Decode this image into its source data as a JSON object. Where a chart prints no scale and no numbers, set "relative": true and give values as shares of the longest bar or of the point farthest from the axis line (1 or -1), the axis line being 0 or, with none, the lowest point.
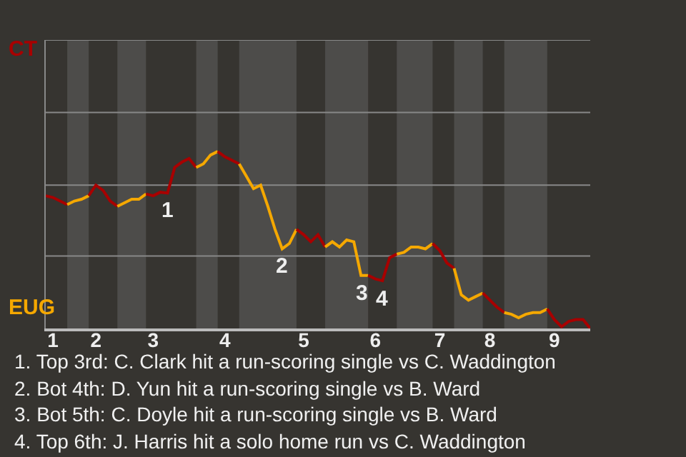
{
  "chart_data": {
    "type": "line",
    "relative": true,
    "categories": [
      null,
      "1",
      null,
      null,
      null,
      null,
      null,
      "2",
      null,
      null,
      null,
      null,
      null,
      null,
      null,
      "3",
      null,
      null,
      null,
      null,
      null,
      null,
      null,
      null,
      null,
      "4",
      null,
      null,
      null,
      null,
      null,
      null,
      null,
      null,
      null,
      null,
      "5",
      null,
      null,
      null,
      null,
      null,
      null,
      null,
      null,
      null,
      "6",
      null,
      null,
      null,
      null,
      null,
      null,
      null,
      null,
      "7",
      null,
      null,
      null,
      null,
      null,
      null,
      "8",
      null,
      null,
      null,
      null,
      null,
      null,
      null,
      null,
      "9",
      null,
      null,
      null,
      null,
      null
    ],
    "marker": "none",
    "line_style": "solid",
    "ref_lines": [
      {
        "axis": "y",
        "value": 0.41,
        "color": "#888888"
      },
      {
        "axis": "y",
        "value": 0.81,
        "color": "#888888"
      },
      {
        "axis": "y",
        "value": 1.22,
        "color": "#888888"
      },
      {
        "axis": "y",
        "value": 1.63,
        "color": "#888888"
      }
    ],
    "series": [
      {
        "name": "CT",
        "color": "#a80000",
        "values": [
          0.75,
          0.74,
          0.72,
          0.7,
          null,
          null,
          null,
          null,
          null,
          null,
          null,
          null,
          null,
          null,
          null,
          null,
          null,
          null,
          null,
          null,
          null,
          null,
          null,
          null,
          null,
          null,
          null,
          null,
          null,
          null,
          null,
          null,
          null,
          null,
          null,
          null,
          null,
          null,
          null,
          null,
          null,
          null,
          null,
          null,
          null,
          null,
          null,
          null,
          null,
          null,
          null,
          null,
          null,
          null,
          null,
          null,
          null,
          null,
          null,
          null,
          null,
          null,
          null,
          null,
          null,
          null,
          null,
          null,
          null,
          null,
          null,
          null,
          null,
          null,
          null,
          null,
          null
        ]
      },
      {
        "name": "EUG",
        "color": "#f5a800",
        "values": [
          null,
          null,
          null,
          0.7,
          0.72,
          0.73,
          0.75,
          null,
          null,
          null,
          null,
          null,
          null,
          null,
          null,
          null,
          null,
          null,
          null,
          null,
          null,
          null,
          null,
          null,
          null,
          null,
          null,
          null,
          null,
          null,
          null,
          null,
          null,
          null,
          null,
          null,
          null,
          null,
          null,
          null,
          null,
          null,
          null,
          null,
          null,
          null,
          null,
          null,
          null,
          null,
          null,
          null,
          null,
          null,
          null,
          null,
          null,
          null,
          null,
          null,
          null,
          null,
          null,
          null,
          null,
          null,
          null,
          null,
          null,
          null,
          null,
          null,
          null,
          null,
          null,
          null,
          null
        ]
      },
      {
        "color": "#a80000",
        "values": [
          null,
          null,
          null,
          null,
          null,
          null,
          0.75,
          0.81,
          0.78,
          0.72,
          0.69,
          null,
          null,
          null,
          null,
          null,
          null,
          null,
          null,
          null,
          null,
          null,
          null,
          null,
          null,
          null,
          null,
          null,
          null,
          null,
          null,
          null,
          null,
          null,
          null,
          null,
          null,
          null,
          null,
          null,
          null,
          null,
          null,
          null,
          null,
          null,
          null,
          null,
          null,
          null,
          null,
          null,
          null,
          null,
          null,
          null,
          null,
          null,
          null,
          null,
          null,
          null,
          null,
          null,
          null,
          null,
          null,
          null,
          null,
          null,
          null,
          null,
          null,
          null,
          null,
          null,
          null
        ]
      },
      {
        "color": "#f5a800",
        "values": [
          null,
          null,
          null,
          null,
          null,
          null,
          null,
          null,
          null,
          null,
          0.69,
          0.71,
          0.73,
          0.73,
          0.76,
          null,
          null,
          null,
          null,
          null,
          null,
          null,
          null,
          null,
          null,
          null,
          null,
          null,
          null,
          null,
          null,
          null,
          null,
          null,
          null,
          null,
          null,
          null,
          null,
          null,
          null,
          null,
          null,
          null,
          null,
          null,
          null,
          null,
          null,
          null,
          null,
          null,
          null,
          null,
          null,
          null,
          null,
          null,
          null,
          null,
          null,
          null,
          null,
          null,
          null,
          null,
          null,
          null,
          null,
          null,
          null,
          null,
          null,
          null,
          null,
          null,
          null
        ]
      },
      {
        "color": "#a80000",
        "values": [
          null,
          null,
          null,
          null,
          null,
          null,
          null,
          null,
          null,
          null,
          null,
          null,
          null,
          null,
          0.76,
          0.75,
          0.77,
          0.765,
          0.91,
          0.94,
          0.96,
          0.91,
          null,
          null,
          null,
          null,
          null,
          null,
          null,
          null,
          null,
          null,
          null,
          null,
          null,
          null,
          null,
          null,
          null,
          null,
          null,
          null,
          null,
          null,
          null,
          null,
          null,
          null,
          null,
          null,
          null,
          null,
          null,
          null,
          null,
          null,
          null,
          null,
          null,
          null,
          null,
          null,
          null,
          null,
          null,
          null,
          null,
          null,
          null,
          null,
          null,
          null,
          null,
          null,
          null,
          null,
          null
        ]
      },
      {
        "color": "#f5a800",
        "values": [
          null,
          null,
          null,
          null,
          null,
          null,
          null,
          null,
          null,
          null,
          null,
          null,
          null,
          null,
          null,
          null,
          null,
          null,
          null,
          null,
          null,
          0.91,
          0.93,
          0.98,
          1.0,
          null,
          null,
          null,
          null,
          null,
          null,
          null,
          null,
          null,
          null,
          null,
          null,
          null,
          null,
          null,
          null,
          null,
          null,
          null,
          null,
          null,
          null,
          null,
          null,
          null,
          null,
          null,
          null,
          null,
          null,
          null,
          null,
          null,
          null,
          null,
          null,
          null,
          null,
          null,
          null,
          null,
          null,
          null,
          null,
          null,
          null,
          null,
          null,
          null,
          null,
          null,
          null
        ]
      },
      {
        "color": "#a80000",
        "values": [
          null,
          null,
          null,
          null,
          null,
          null,
          null,
          null,
          null,
          null,
          null,
          null,
          null,
          null,
          null,
          null,
          null,
          null,
          null,
          null,
          null,
          null,
          null,
          null,
          1.0,
          0.97,
          0.95,
          0.93,
          null,
          null,
          null,
          null,
          null,
          null,
          null,
          null,
          null,
          null,
          null,
          null,
          null,
          null,
          null,
          null,
          null,
          null,
          null,
          null,
          null,
          null,
          null,
          null,
          null,
          null,
          null,
          null,
          null,
          null,
          null,
          null,
          null,
          null,
          null,
          null,
          null,
          null,
          null,
          null,
          null,
          null,
          null,
          null,
          null,
          null,
          null,
          null,
          null
        ]
      },
      {
        "color": "#f5a800",
        "values": [
          null,
          null,
          null,
          null,
          null,
          null,
          null,
          null,
          null,
          null,
          null,
          null,
          null,
          null,
          null,
          null,
          null,
          null,
          null,
          null,
          null,
          null,
          null,
          null,
          null,
          null,
          null,
          0.93,
          0.86,
          0.79,
          0.81,
          0.69,
          0.56,
          0.45,
          0.48,
          0.56,
          null,
          null,
          null,
          null,
          null,
          null,
          null,
          null,
          null,
          null,
          null,
          null,
          null,
          null,
          null,
          null,
          null,
          null,
          null,
          null,
          null,
          null,
          null,
          null,
          null,
          null,
          null,
          null,
          null,
          null,
          null,
          null,
          null,
          null,
          null,
          null,
          null,
          null,
          null,
          null,
          null
        ]
      },
      {
        "color": "#a80000",
        "values": [
          null,
          null,
          null,
          null,
          null,
          null,
          null,
          null,
          null,
          null,
          null,
          null,
          null,
          null,
          null,
          null,
          null,
          null,
          null,
          null,
          null,
          null,
          null,
          null,
          null,
          null,
          null,
          null,
          null,
          null,
          null,
          null,
          null,
          null,
          null,
          0.56,
          0.53,
          0.49,
          0.53,
          0.46,
          null,
          null,
          null,
          null,
          null,
          null,
          null,
          null,
          null,
          null,
          null,
          null,
          null,
          null,
          null,
          null,
          null,
          null,
          null,
          null,
          null,
          null,
          null,
          null,
          null,
          null,
          null,
          null,
          null,
          null,
          null,
          null,
          null,
          null,
          null,
          null,
          null
        ]
      },
      {
        "color": "#f5a800",
        "values": [
          null,
          null,
          null,
          null,
          null,
          null,
          null,
          null,
          null,
          null,
          null,
          null,
          null,
          null,
          null,
          null,
          null,
          null,
          null,
          null,
          null,
          null,
          null,
          null,
          null,
          null,
          null,
          null,
          null,
          null,
          null,
          null,
          null,
          null,
          null,
          null,
          null,
          null,
          null,
          0.46,
          0.49,
          0.46,
          0.5,
          0.49,
          0.3,
          0.3,
          null,
          null,
          null,
          null,
          null,
          null,
          null,
          null,
          null,
          null,
          null,
          null,
          null,
          null,
          null,
          null,
          null,
          null,
          null,
          null,
          null,
          null,
          null,
          null,
          null,
          null,
          null,
          null,
          null,
          null,
          null
        ]
      },
      {
        "color": "#a80000",
        "values": [
          null,
          null,
          null,
          null,
          null,
          null,
          null,
          null,
          null,
          null,
          null,
          null,
          null,
          null,
          null,
          null,
          null,
          null,
          null,
          null,
          null,
          null,
          null,
          null,
          null,
          null,
          null,
          null,
          null,
          null,
          null,
          null,
          null,
          null,
          null,
          null,
          null,
          null,
          null,
          null,
          null,
          null,
          null,
          null,
          null,
          0.3,
          0.28,
          0.27,
          0.4,
          0.42,
          null,
          null,
          null,
          null,
          null,
          null,
          null,
          null,
          null,
          null,
          null,
          null,
          null,
          null,
          null,
          null,
          null,
          null,
          null,
          null,
          null,
          null,
          null,
          null,
          null,
          null,
          null
        ]
      },
      {
        "color": "#f5a800",
        "values": [
          null,
          null,
          null,
          null,
          null,
          null,
          null,
          null,
          null,
          null,
          null,
          null,
          null,
          null,
          null,
          null,
          null,
          null,
          null,
          null,
          null,
          null,
          null,
          null,
          null,
          null,
          null,
          null,
          null,
          null,
          null,
          null,
          null,
          null,
          null,
          null,
          null,
          null,
          null,
          null,
          null,
          null,
          null,
          null,
          null,
          null,
          null,
          null,
          null,
          0.42,
          0.43,
          0.46,
          0.46,
          0.45,
          0.48,
          null,
          null,
          null,
          null,
          null,
          null,
          null,
          null,
          null,
          null,
          null,
          null,
          null,
          null,
          null,
          null,
          null,
          null,
          null,
          null,
          null,
          null
        ]
      },
      {
        "color": "#a80000",
        "values": [
          null,
          null,
          null,
          null,
          null,
          null,
          null,
          null,
          null,
          null,
          null,
          null,
          null,
          null,
          null,
          null,
          null,
          null,
          null,
          null,
          null,
          null,
          null,
          null,
          null,
          null,
          null,
          null,
          null,
          null,
          null,
          null,
          null,
          null,
          null,
          null,
          null,
          null,
          null,
          null,
          null,
          null,
          null,
          null,
          null,
          null,
          null,
          null,
          null,
          null,
          null,
          null,
          null,
          null,
          0.48,
          0.44,
          0.37,
          0.34,
          null,
          null,
          null,
          null,
          null,
          null,
          null,
          null,
          null,
          null,
          null,
          null,
          null,
          null,
          null,
          null,
          null,
          null,
          null
        ]
      },
      {
        "color": "#f5a800",
        "values": [
          null,
          null,
          null,
          null,
          null,
          null,
          null,
          null,
          null,
          null,
          null,
          null,
          null,
          null,
          null,
          null,
          null,
          null,
          null,
          null,
          null,
          null,
          null,
          null,
          null,
          null,
          null,
          null,
          null,
          null,
          null,
          null,
          null,
          null,
          null,
          null,
          null,
          null,
          null,
          null,
          null,
          null,
          null,
          null,
          null,
          null,
          null,
          null,
          null,
          null,
          null,
          null,
          null,
          null,
          null,
          null,
          null,
          0.34,
          0.19,
          0.16,
          0.18,
          0.2,
          null,
          null,
          null,
          null,
          null,
          null,
          null,
          null,
          null,
          null,
          null,
          null,
          null,
          null,
          null
        ]
      },
      {
        "color": "#a80000",
        "values": [
          null,
          null,
          null,
          null,
          null,
          null,
          null,
          null,
          null,
          null,
          null,
          null,
          null,
          null,
          null,
          null,
          null,
          null,
          null,
          null,
          null,
          null,
          null,
          null,
          null,
          null,
          null,
          null,
          null,
          null,
          null,
          null,
          null,
          null,
          null,
          null,
          null,
          null,
          null,
          null,
          null,
          null,
          null,
          null,
          null,
          null,
          null,
          null,
          null,
          null,
          null,
          null,
          null,
          null,
          null,
          null,
          null,
          null,
          null,
          null,
          null,
          0.2,
          0.16,
          0.12,
          0.09,
          null,
          null,
          null,
          null,
          null,
          null,
          null,
          null,
          null,
          null,
          null,
          null
        ]
      },
      {
        "color": "#f5a800",
        "values": [
          null,
          null,
          null,
          null,
          null,
          null,
          null,
          null,
          null,
          null,
          null,
          null,
          null,
          null,
          null,
          null,
          null,
          null,
          null,
          null,
          null,
          null,
          null,
          null,
          null,
          null,
          null,
          null,
          null,
          null,
          null,
          null,
          null,
          null,
          null,
          null,
          null,
          null,
          null,
          null,
          null,
          null,
          null,
          null,
          null,
          null,
          null,
          null,
          null,
          null,
          null,
          null,
          null,
          null,
          null,
          null,
          null,
          null,
          null,
          null,
          null,
          null,
          null,
          null,
          0.09,
          0.08,
          0.06,
          0.08,
          0.09,
          0.09,
          0.11,
          null,
          null,
          null,
          null,
          null,
          null
        ]
      },
      {
        "color": "#a80000",
        "values": [
          null,
          null,
          null,
          null,
          null,
          null,
          null,
          null,
          null,
          null,
          null,
          null,
          null,
          null,
          null,
          null,
          null,
          null,
          null,
          null,
          null,
          null,
          null,
          null,
          null,
          null,
          null,
          null,
          null,
          null,
          null,
          null,
          null,
          null,
          null,
          null,
          null,
          null,
          null,
          null,
          null,
          null,
          null,
          null,
          null,
          null,
          null,
          null,
          null,
          null,
          null,
          null,
          null,
          null,
          null,
          null,
          null,
          null,
          null,
          null,
          null,
          null,
          null,
          null,
          null,
          null,
          null,
          null,
          null,
          null,
          0.11,
          0.05,
          0.01,
          0.04,
          0.05,
          0.05,
          0
        ]
      }
    ],
    "annotations": [
      {
        "text": "1",
        "y": 0.765
      },
      {
        "text": "2",
        "y": 0.45
      },
      {
        "text": "3",
        "y": 0.3
      },
      {
        "text": "4",
        "y": 0.27
      },
      "1. Top 3rd: C. Clark hit a run-scoring single vs C. Waddington",
      "2. Bot 4th: D. Yun hit a run-scoring single vs B. Ward",
      "3. Bot 5th: C. Doyle hit a run-scoring single vs B. Ward",
      "4. Top 6th: J. Harris hit a solo home run vs C. Waddington"
    ]
  }
}
